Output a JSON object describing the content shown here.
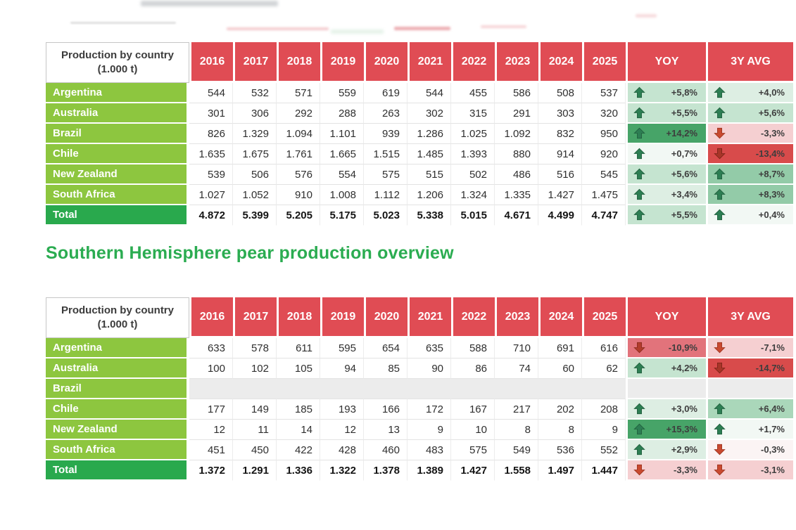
{
  "heading": "Southern Hemisphere pear production overview",
  "palette": {
    "header_red": "#e04c54",
    "country_green": "#8dc63f",
    "total_green": "#29a94d",
    "heading_green": "#2bac51",
    "trend_light_green": "#c5e4d0",
    "trend_medium_green": "#93cba8",
    "trend_dark_green": "#47a468",
    "trend_light_red": "#f5cfd1",
    "trend_medium_red": "#e2737b",
    "trend_dark_red": "#d84b4b",
    "empty_row_gray": "#ececec"
  },
  "table1": {
    "corner_line1": "Production by country",
    "corner_line2": "(1.000 t)",
    "years": [
      "2016",
      "2017",
      "2018",
      "2019",
      "2020",
      "2021",
      "2022",
      "2023",
      "2024",
      "2025"
    ],
    "yoy_label": "YOY",
    "avg_label": "3Y AVG",
    "rows": [
      {
        "country": "Argentina",
        "values": [
          "544",
          "532",
          "571",
          "559",
          "619",
          "544",
          "455",
          "586",
          "508",
          "537"
        ],
        "yoy": {
          "dir": "up",
          "text": "+5,8%",
          "cls": "g2"
        },
        "avg": {
          "dir": "up",
          "text": "+4,0%",
          "cls": "g1"
        }
      },
      {
        "country": "Australia",
        "values": [
          "301",
          "306",
          "292",
          "288",
          "263",
          "302",
          "315",
          "291",
          "303",
          "320"
        ],
        "yoy": {
          "dir": "up",
          "text": "+5,5%",
          "cls": "g2"
        },
        "avg": {
          "dir": "up",
          "text": "+5,6%",
          "cls": "g2"
        }
      },
      {
        "country": "Brazil",
        "values": [
          "826",
          "1.329",
          "1.094",
          "1.101",
          "939",
          "1.286",
          "1.025",
          "1.092",
          "832",
          "950"
        ],
        "yoy": {
          "dir": "up",
          "text": "+14,2%",
          "cls": "g4"
        },
        "avg": {
          "dir": "down",
          "text": "-3,3%",
          "cls": "r1"
        }
      },
      {
        "country": "Chile",
        "values": [
          "1.635",
          "1.675",
          "1.761",
          "1.665",
          "1.515",
          "1.485",
          "1.393",
          "880",
          "914",
          "920"
        ],
        "yoy": {
          "dir": "up",
          "text": "+0,7%",
          "cls": "g0"
        },
        "avg": {
          "dir": "down",
          "text": "-13,4%",
          "cls": "r4"
        }
      },
      {
        "country": "New Zealand",
        "values": [
          "539",
          "506",
          "576",
          "554",
          "575",
          "515",
          "502",
          "486",
          "516",
          "545"
        ],
        "yoy": {
          "dir": "up",
          "text": "+5,6%",
          "cls": "g2"
        },
        "avg": {
          "dir": "up",
          "text": "+8,7%",
          "cls": "g3"
        }
      },
      {
        "country": "South Africa",
        "values": [
          "1.027",
          "1.052",
          "910",
          "1.008",
          "1.112",
          "1.206",
          "1.324",
          "1.335",
          "1.427",
          "1.475"
        ],
        "yoy": {
          "dir": "up",
          "text": "+3,4%",
          "cls": "g1"
        },
        "avg": {
          "dir": "up",
          "text": "+8,3%",
          "cls": "g3"
        }
      },
      {
        "country": "Total",
        "total": true,
        "values": [
          "4.872",
          "5.399",
          "5.205",
          "5.175",
          "5.023",
          "5.338",
          "5.015",
          "4.671",
          "4.499",
          "4.747"
        ],
        "yoy": {
          "dir": "up",
          "text": "+5,5%",
          "cls": "g2"
        },
        "avg": {
          "dir": "up",
          "text": "+0,4%",
          "cls": "g0"
        }
      }
    ]
  },
  "table2": {
    "corner_line1": "Production by country",
    "corner_line2": "(1.000 t)",
    "years": [
      "2016",
      "2017",
      "2018",
      "2019",
      "2020",
      "2021",
      "2022",
      "2023",
      "2024",
      "2025"
    ],
    "yoy_label": "YOY",
    "avg_label": "3Y AVG",
    "rows": [
      {
        "country": "Argentina",
        "values": [
          "633",
          "578",
          "611",
          "595",
          "654",
          "635",
          "588",
          "710",
          "691",
          "616"
        ],
        "yoy": {
          "dir": "down",
          "text": "-10,9%",
          "cls": "r3"
        },
        "avg": {
          "dir": "down",
          "text": "-7,1%",
          "cls": "r1"
        }
      },
      {
        "country": "Australia",
        "values": [
          "100",
          "102",
          "105",
          "94",
          "85",
          "90",
          "86",
          "74",
          "60",
          "62"
        ],
        "yoy": {
          "dir": "up",
          "text": "+4,2%",
          "cls": "g2"
        },
        "avg": {
          "dir": "down",
          "text": "-14,7%",
          "cls": "r4"
        }
      },
      {
        "country": "Brazil",
        "empty": true
      },
      {
        "country": "Chile",
        "values": [
          "177",
          "149",
          "185",
          "193",
          "166",
          "172",
          "167",
          "217",
          "202",
          "208"
        ],
        "yoy": {
          "dir": "up",
          "text": "+3,0%",
          "cls": "g1"
        },
        "avg": {
          "dir": "up",
          "text": "+6,4%",
          "cls": "g3d"
        }
      },
      {
        "country": "New Zealand",
        "values": [
          "12",
          "11",
          "14",
          "12",
          "13",
          "9",
          "10",
          "8",
          "8",
          "9"
        ],
        "yoy": {
          "dir": "up",
          "text": "+15,3%",
          "cls": "g4"
        },
        "avg": {
          "dir": "up",
          "text": "+1,7%",
          "cls": "g0"
        }
      },
      {
        "country": "South Africa",
        "values": [
          "451",
          "450",
          "422",
          "428",
          "460",
          "483",
          "575",
          "549",
          "536",
          "552"
        ],
        "yoy": {
          "dir": "up",
          "text": "+2,9%",
          "cls": "g1"
        },
        "avg": {
          "dir": "down",
          "text": "-0,3%",
          "cls": "r0"
        }
      },
      {
        "country": "Total",
        "total": true,
        "values": [
          "1.372",
          "1.291",
          "1.336",
          "1.322",
          "1.378",
          "1.389",
          "1.427",
          "1.558",
          "1.497",
          "1.447"
        ],
        "yoy": {
          "dir": "down",
          "text": "-3,3%",
          "cls": "r1"
        },
        "avg": {
          "dir": "down",
          "text": "-3,1%",
          "cls": "r1"
        }
      }
    ]
  }
}
